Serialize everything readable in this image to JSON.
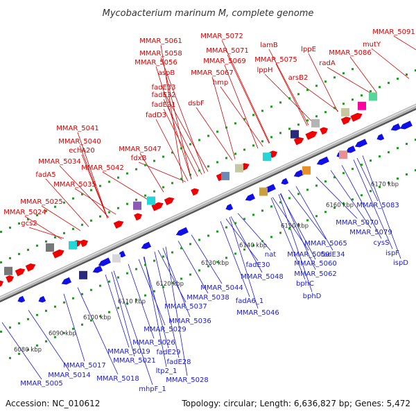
{
  "title": "Mycobacterium marinum M, complete genome",
  "footer": {
    "accession": "Accession: NC_010612",
    "summary": "Topology: circular; Length: 6,636,827 bp; Genes: 5,472"
  },
  "colors": {
    "forward_label": "#d40000",
    "reverse_label": "#1a1ad4",
    "forward_gene": "#f00000",
    "reverse_gene": "#1010e6",
    "backbone": "#9a9a9a",
    "tick_dots": "#1f9a1f"
  },
  "ticks": [
    "6080 kbp",
    "6090 kbp",
    "6100 kbp",
    "6110 kbp",
    "6120 kbp",
    "6130 kbp",
    "6140 kbp",
    "6150 kbp",
    "6160 kbp",
    "6170 kbp"
  ],
  "forward_labels": [
    "MMAR_5061",
    "MMAR_5072",
    "MMAR_5091",
    "MMAR_5058",
    "MMAR_5071",
    "lamB",
    "mutY",
    "MMAR_5056",
    "MMAR_5069",
    "MMAR_5075",
    "lppE",
    "MMAR_5086",
    "aspB",
    "MMAR_5067",
    "lppH",
    "radA",
    "fadE33",
    "hmp",
    "arsB2",
    "fadE32",
    "dsbF",
    "fadE31",
    "fadD3",
    "MMAR_5041",
    "MMAR_5040",
    "echA20",
    "MMAR_5047",
    "MMAR_5034",
    "fdxB",
    "MMAR_5042",
    "fadA5",
    "MMAR_5035",
    "MMAR_5025",
    "MMAR_5024",
    "gcs2"
  ],
  "reverse_labels": [
    "MMAR_5083",
    "MMAR_5070",
    "MMAR_5079",
    "cysS",
    "ispF",
    "ispD",
    "MMAR_5065",
    "fadE34",
    "MMAR_5059",
    "MMAR_5060",
    "MMAR_5062",
    "bphC",
    "bphD",
    "nat",
    "fadE30",
    "MMAR_5048",
    "MMAR_5044",
    "MMAR_5038",
    "fadA6_1",
    "MMAR_5046",
    "MMAR_5037",
    "MMAR_5036",
    "MMAR_5029",
    "MMAR_5026",
    "fadE29",
    "fadE28",
    "MMAR_5019",
    "MMAR_5021",
    "ltp2_1",
    "MMAR_5028",
    "MMAR_5017",
    "MMAR_5014",
    "MMAR_5018",
    "MMAR_5005",
    "mhpF_1"
  ]
}
